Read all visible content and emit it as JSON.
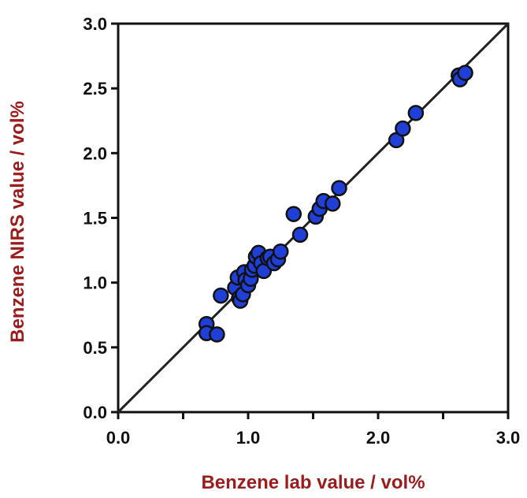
{
  "chart_data": {
    "type": "scatter",
    "title": "",
    "xlabel": "Benzene lab value / vol%",
    "ylabel": "Benzene NIRS value / vol%",
    "xlim": [
      0,
      3
    ],
    "ylim": [
      0,
      3
    ],
    "x_ticks": [
      "0.0",
      "1.0",
      "2.0",
      "3.0"
    ],
    "y_ticks": [
      "0.0",
      "0.5",
      "1.0",
      "1.5",
      "2.0",
      "2.5",
      "3.0"
    ],
    "x_tick_values": [
      0,
      1,
      2,
      3
    ],
    "x_minor_tick_values": [
      0.5,
      1.5,
      2.5
    ],
    "y_tick_values": [
      0,
      0.5,
      1,
      1.5,
      2,
      2.5,
      3
    ],
    "reference_line": {
      "from": [
        0,
        0
      ],
      "to": [
        3,
        3
      ]
    },
    "grid": false,
    "legend": "none",
    "series": [
      {
        "points": [
          [
            0.68,
            0.68
          ],
          [
            0.68,
            0.61
          ],
          [
            0.76,
            0.6
          ],
          [
            0.79,
            0.9
          ],
          [
            0.9,
            0.96
          ],
          [
            0.92,
            1.04
          ],
          [
            0.93,
            0.88
          ],
          [
            0.94,
            0.86
          ],
          [
            0.96,
            0.91
          ],
          [
            0.97,
            1.08
          ],
          [
            0.98,
            1.02
          ],
          [
            1.0,
            0.98
          ],
          [
            1.02,
            1.03
          ],
          [
            1.03,
            1.1
          ],
          [
            1.05,
            1.13
          ],
          [
            1.06,
            1.2
          ],
          [
            1.08,
            1.23
          ],
          [
            1.1,
            1.15
          ],
          [
            1.12,
            1.09
          ],
          [
            1.15,
            1.19
          ],
          [
            1.17,
            1.2
          ],
          [
            1.2,
            1.15
          ],
          [
            1.23,
            1.18
          ],
          [
            1.25,
            1.24
          ],
          [
            1.35,
            1.53
          ],
          [
            1.4,
            1.37
          ],
          [
            1.52,
            1.51
          ],
          [
            1.55,
            1.57
          ],
          [
            1.58,
            1.63
          ],
          [
            1.65,
            1.61
          ],
          [
            1.7,
            1.73
          ],
          [
            2.14,
            2.1
          ],
          [
            2.19,
            2.19
          ],
          [
            2.29,
            2.31
          ],
          [
            2.62,
            2.6
          ],
          [
            2.63,
            2.57
          ],
          [
            2.67,
            2.62
          ]
        ]
      }
    ],
    "colors": {
      "marker_fill": "#1f3fd6",
      "marker_stroke": "#111111",
      "axis": "#111111",
      "axis_title": "#9b1c1c"
    }
  }
}
